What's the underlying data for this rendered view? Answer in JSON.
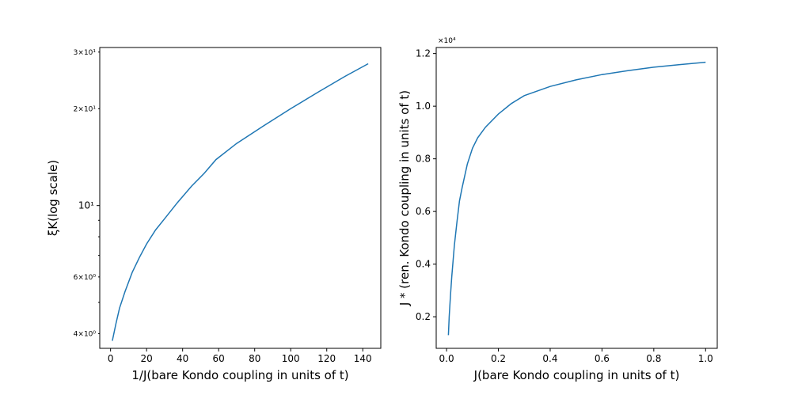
{
  "chart_data": [
    {
      "type": "line",
      "xlabel": "1/J(bare Kondo coupling in units of t)",
      "ylabel": "ξK(log scale)",
      "yscale": "log",
      "xlim": [
        -6,
        150
      ],
      "ylim": [
        3.6,
        31
      ],
      "xticks": [
        "0",
        "20",
        "40",
        "60",
        "80",
        "100",
        "120",
        "140"
      ],
      "xtick_values": [
        0,
        20,
        40,
        60,
        80,
        100,
        120,
        140
      ],
      "yticks_major": [
        {
          "value": 10,
          "label": "10¹"
        }
      ],
      "yticks_minor": [
        {
          "value": 4,
          "label": "4×10⁰"
        },
        {
          "value": 6,
          "label": "6×10⁰"
        },
        {
          "value": 20,
          "label": "2×10¹"
        },
        {
          "value": 30,
          "label": "3×10¹"
        }
      ],
      "grid": false,
      "color": "#1f77b4",
      "series": [
        {
          "x": [
            1,
            3,
            5,
            8,
            12,
            16,
            20,
            25,
            30,
            37,
            45,
            52,
            58.5,
            70,
            85,
            100,
            115,
            130,
            143
          ],
          "y": [
            3.8,
            4.3,
            4.8,
            5.4,
            6.2,
            6.9,
            7.6,
            8.4,
            9.1,
            10.2,
            11.5,
            12.6,
            13.9,
            15.6,
            17.7,
            20.0,
            22.5,
            25.2,
            27.6
          ]
        }
      ]
    },
    {
      "type": "line",
      "xlabel": "J(bare Kondo coupling in units of t)",
      "ylabel": "J * (ren. Kondo coupling in units of t)",
      "offset": "×10⁴",
      "xlim": [
        -0.04,
        1.045
      ],
      "ylim": [
        0.08,
        1.223
      ],
      "xticks": [
        "0.0",
        "0.2",
        "0.4",
        "0.6",
        "0.8",
        "1.0"
      ],
      "xtick_values": [
        0,
        0.2,
        0.4,
        0.6,
        0.8,
        1.0
      ],
      "yticks": [
        "0.2",
        "0.4",
        "0.6",
        "0.8",
        "1.0",
        "1.2"
      ],
      "ytick_values": [
        0.2,
        0.4,
        0.6,
        0.8,
        1.0,
        1.2
      ],
      "grid": false,
      "color": "#1f77b4",
      "series": [
        {
          "x": [
            0.007,
            0.01,
            0.015,
            0.02,
            0.03,
            0.04,
            0.05,
            0.06,
            0.08,
            0.1,
            0.12,
            0.15,
            0.2,
            0.25,
            0.3,
            0.4,
            0.5,
            0.6,
            0.7,
            0.8,
            0.9,
            1.0
          ],
          "y": [
            0.13,
            0.2,
            0.28,
            0.35,
            0.47,
            0.56,
            0.64,
            0.69,
            0.78,
            0.84,
            0.88,
            0.92,
            0.97,
            1.01,
            1.04,
            1.075,
            1.1,
            1.12,
            1.135,
            1.148,
            1.158,
            1.167
          ]
        }
      ]
    }
  ]
}
